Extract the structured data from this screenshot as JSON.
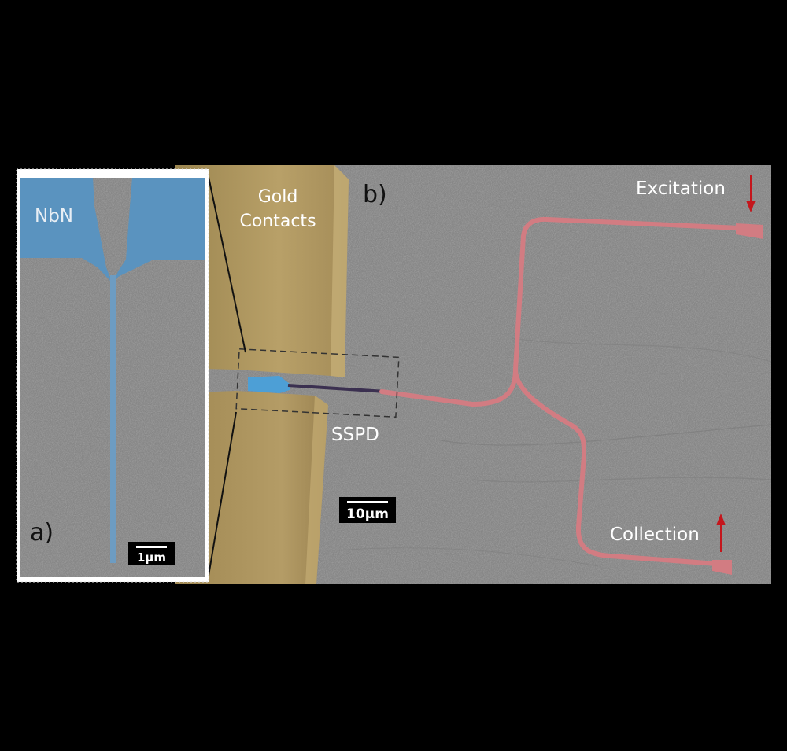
{
  "panel_a": {
    "label": "a)",
    "material_label": "NbN",
    "scale_bar": "1μm"
  },
  "panel_b": {
    "label": "b)",
    "contacts_label_line1": "Gold",
    "contacts_label_line2": "Contacts",
    "detector_label": "SSPD",
    "excitation_label": "Excitation",
    "collection_label": "Collection",
    "scale_bar": "10μm"
  },
  "colors": {
    "background": "#000000",
    "sem_gray": "#8a8a8a",
    "gold": "#b49d63",
    "nbn_blue": "#5a93bf",
    "waveguide_red": "#d67a80",
    "arrow_red": "#c4161c",
    "inset_border": "#ffffff"
  }
}
